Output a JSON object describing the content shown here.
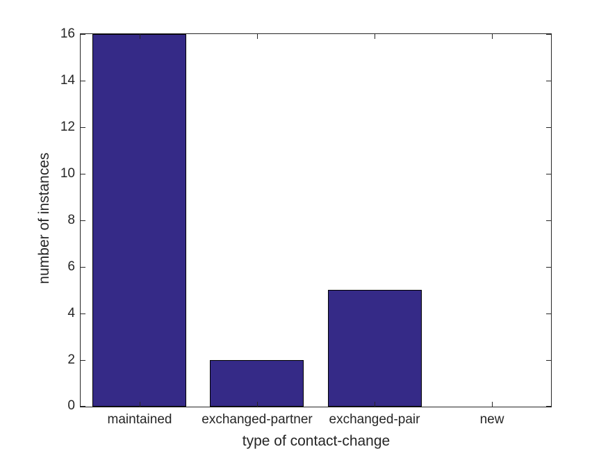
{
  "figure": {
    "background_color": "#ffffff"
  },
  "chart_data": {
    "type": "bar",
    "title": "",
    "categories": [
      "maintained",
      "exchanged-partner",
      "exchanged-pair",
      "new"
    ],
    "values": [
      16,
      2,
      5,
      0
    ],
    "xlabel": "type of contact-change",
    "ylabel": "number of instances",
    "ylim": [
      0,
      16
    ],
    "yticks": [
      0,
      2,
      4,
      6,
      8,
      10,
      12,
      14,
      16
    ],
    "grid": false,
    "box": true,
    "tick_direction": "in",
    "legend": false,
    "bar_width_fraction": 0.8,
    "bar_color": "#352a87",
    "bar_edge_color": "#000000",
    "axis_color": "#262626",
    "text_color": "#262626"
  }
}
